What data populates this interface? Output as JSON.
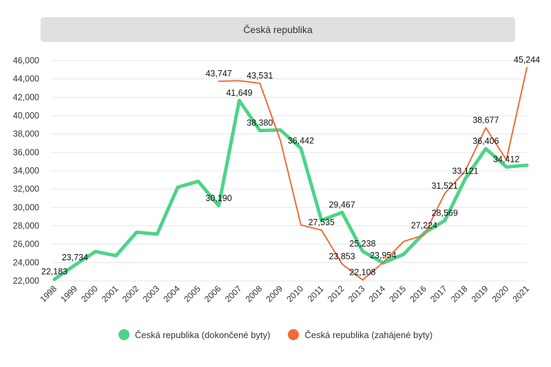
{
  "chart_data": {
    "type": "line",
    "title": "Česká republika",
    "categories": [
      "1998",
      "1999",
      "2000",
      "2001",
      "2002",
      "2003",
      "2004",
      "2005",
      "2006",
      "2007",
      "2008",
      "2009",
      "2010",
      "2011",
      "2012",
      "2013",
      "2014",
      "2015",
      "2016",
      "2017",
      "2018",
      "2019",
      "2020",
      "2021"
    ],
    "series": [
      {
        "name": "Česká republika (dokončené byty)",
        "color": "#4cd488",
        "values": [
          22183,
          23734,
          25200,
          24750,
          27300,
          27100,
          32200,
          32850,
          30190,
          41649,
          38380,
          38450,
          36442,
          28600,
          29467,
          25238,
          23954,
          24900,
          27224,
          28569,
          33121,
          36406,
          34412,
          34600
        ],
        "labels": {
          "0": "22,183",
          "1": "23,734",
          "8": "30,190",
          "9": "41,649",
          "10": "38,380",
          "12": "36,442",
          "14": "29,467",
          "15": "25,238",
          "16": "23,954",
          "18": "27,224",
          "19": "28,569",
          "20": "33,121",
          "21": "36,406",
          "22": "34,412"
        }
      },
      {
        "name": "Česká republika (zahájené byty)",
        "color": "#f26a36",
        "start_index": 8,
        "values": [
          null,
          null,
          null,
          null,
          null,
          null,
          null,
          null,
          43747,
          43800,
          43531,
          37300,
          28100,
          27535,
          23853,
          22108,
          24000,
          26300,
          27000,
          31521,
          34000,
          38677,
          35200,
          45244
        ],
        "labels": {
          "8": "43,747",
          "10": "43,531",
          "13": "27,535",
          "14": "23,853",
          "15": "22,108",
          "19": "31,521",
          "21": "38,677",
          "23": "45,244"
        }
      }
    ],
    "yticks": [
      "22,000",
      "24,000",
      "26,000",
      "28,000",
      "30,000",
      "32,000",
      "34,000",
      "36,000",
      "38,000",
      "40,000",
      "42,000",
      "44,000",
      "46,000"
    ],
    "ylim": [
      22000,
      46000
    ],
    "grid": true,
    "legend_position": "bottom"
  }
}
